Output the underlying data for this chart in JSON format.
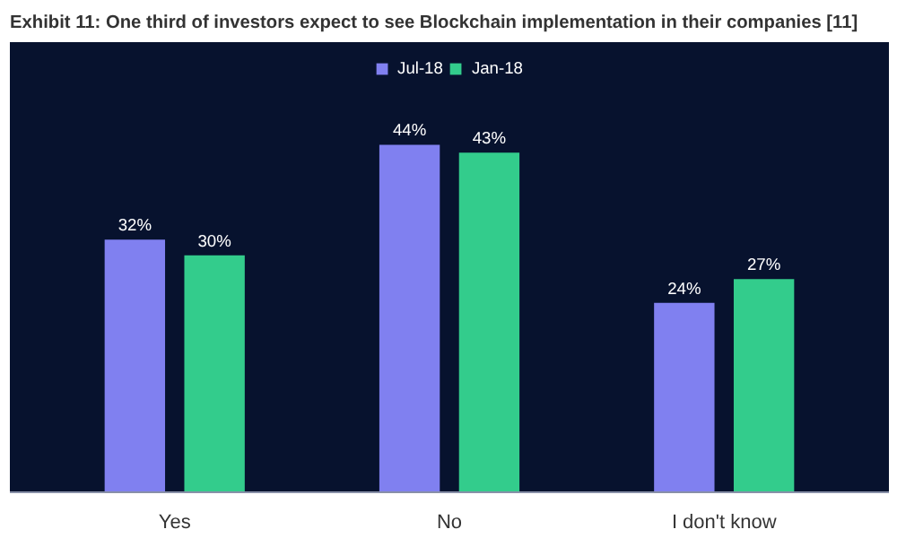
{
  "chart_data": {
    "type": "bar",
    "title": "Exhibit 11: One third of investors expect to see Blockchain implementation in their companies [11]",
    "categories": [
      "Yes",
      "No",
      "I don't know"
    ],
    "series": [
      {
        "name": "Jul-18",
        "color": "#8080f0",
        "values": [
          32,
          44,
          24
        ],
        "value_labels": [
          "32%",
          "44%",
          "24%"
        ]
      },
      {
        "name": "Jan-18",
        "color": "#33cc8c",
        "values": [
          30,
          43,
          27
        ],
        "value_labels": [
          "30%",
          "43%",
          "27%"
        ]
      }
    ],
    "ylim": [
      0,
      57
    ],
    "tick_labels": "x",
    "grid": false,
    "legend": "top"
  }
}
